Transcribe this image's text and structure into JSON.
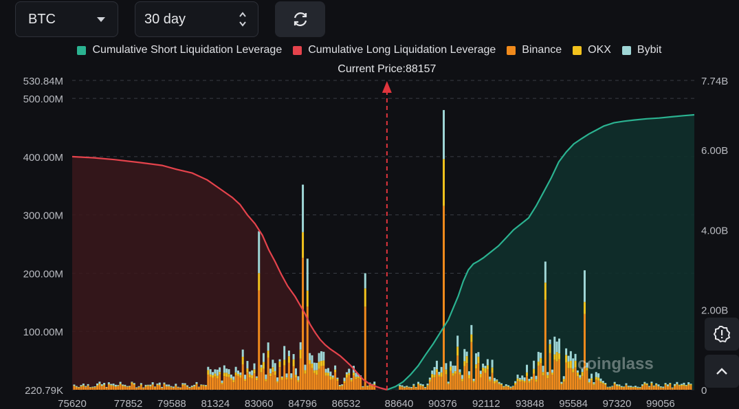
{
  "controls": {
    "coin": "BTC",
    "range": "30 day",
    "refresh_icon": "refresh-icon"
  },
  "colors": {
    "short_cum": "#2bb391",
    "long_cum": "#e5434c",
    "binance": "#f08a1c",
    "okx": "#f2c21d",
    "bybit": "#9fd6d6",
    "price_line": "#e0353d"
  },
  "legend": [
    {
      "label": "Cumulative Short Liquidation Leverage",
      "color": "#2bb391"
    },
    {
      "label": "Cumulative Long Liquidation Leverage",
      "color": "#e5434c"
    },
    {
      "label": "Binance",
      "color": "#f08a1c"
    },
    {
      "label": "OKX",
      "color": "#f2c21d"
    },
    {
      "label": "Bybit",
      "color": "#9fd6d6"
    }
  ],
  "current_price_label": "Current Price:88157",
  "watermark": "coinglass",
  "chart_data": {
    "type": "bar",
    "current_price": 88157,
    "x_ticks": [
      "75620",
      "77852",
      "79588",
      "81324",
      "83060",
      "84796",
      "86532",
      "88640",
      "90376",
      "92112",
      "93848",
      "95584",
      "97320",
      "99056"
    ],
    "x_range": [
      75620,
      100400
    ],
    "y_left_ticks": [
      "530.84M",
      "500.00M",
      "400.00M",
      "300.00M",
      "200.00M",
      "100.00M",
      "220.79K"
    ],
    "y_left_range": [
      0,
      530.84
    ],
    "y_right_ticks": [
      "7.74B",
      "6.00B",
      "4.00B",
      "2.00B",
      "0"
    ],
    "y_right_range": [
      0,
      7.74
    ],
    "long_cumulative": {
      "price": [
        75620,
        76500,
        77300,
        78300,
        79200,
        79800,
        80400,
        81000,
        81500,
        82000,
        82300,
        82600,
        82900,
        83200,
        83450,
        83700,
        83950,
        84200,
        84500,
        84700,
        84900,
        85100,
        85300,
        85500,
        85700,
        85900,
        86100,
        86300,
        86500,
        86700,
        86950,
        87200,
        87500,
        87900,
        88157
      ],
      "value": [
        400,
        398,
        395,
        390,
        385,
        378,
        372,
        360,
        345,
        330,
        318,
        300,
        285,
        265,
        240,
        220,
        198,
        178,
        160,
        145,
        130,
        112,
        98,
        86,
        77,
        70,
        64,
        58,
        50,
        42,
        30,
        18,
        9,
        3,
        0
      ]
    },
    "short_cumulative": {
      "price": [
        88157,
        88500,
        88800,
        89100,
        89400,
        89700,
        90000,
        90300,
        90600,
        90800,
        91000,
        91200,
        91400,
        91600,
        91800,
        92000,
        92300,
        92600,
        92900,
        93200,
        93500,
        93800,
        94100,
        94400,
        94700,
        95000,
        95300,
        95600,
        95900,
        96200,
        96500,
        96800,
        97200,
        97600,
        98000,
        98500,
        99000,
        99500,
        100000,
        100400
      ],
      "value": [
        0,
        0.08,
        0.2,
        0.38,
        0.6,
        0.88,
        1.15,
        1.45,
        1.75,
        2.05,
        2.35,
        2.72,
        3.0,
        3.15,
        3.22,
        3.3,
        3.45,
        3.6,
        3.8,
        4.0,
        4.15,
        4.3,
        4.6,
        4.95,
        5.3,
        5.7,
        5.95,
        6.15,
        6.28,
        6.4,
        6.5,
        6.6,
        6.68,
        6.72,
        6.75,
        6.78,
        6.8,
        6.83,
        6.86,
        6.88
      ]
    },
    "exchange_bars": {
      "price": [
        84796,
        90376,
        83060,
        85000,
        87300,
        94500,
        96000
      ],
      "total": [
        352,
        480,
        272,
        225,
        200,
        220,
        205
      ]
    }
  }
}
